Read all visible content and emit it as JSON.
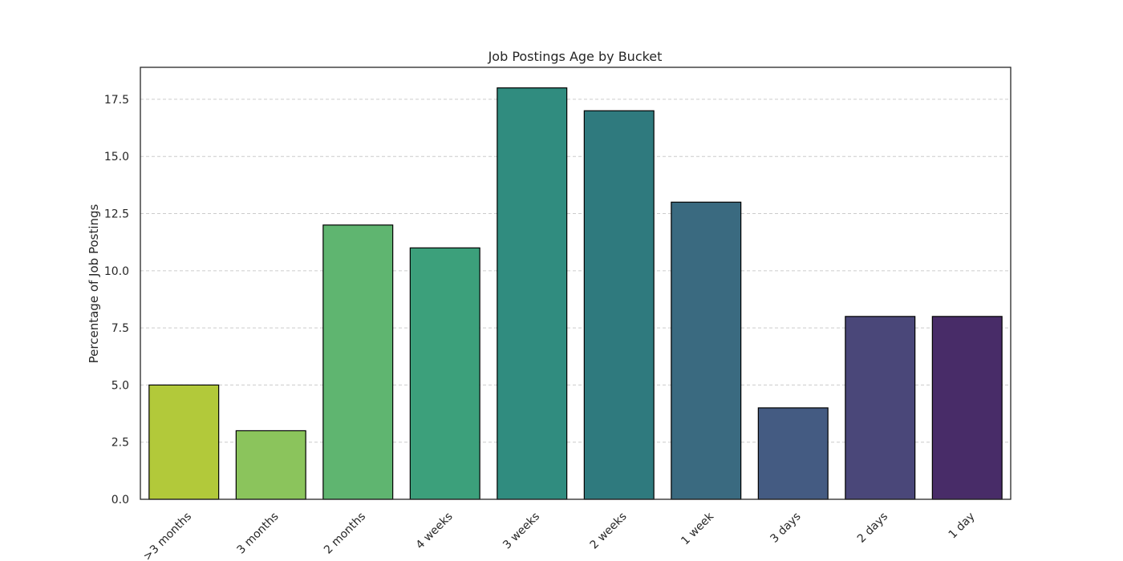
{
  "chart_data": {
    "type": "bar",
    "title": "Job Postings Age by Bucket",
    "xlabel": "",
    "ylabel": "Percentage of Job Postings",
    "categories": [
      ">3 months",
      "3 months",
      "2 months",
      "4 weeks",
      "3 weeks",
      "2 weeks",
      "1 week",
      "3 days",
      "2 days",
      "1 day"
    ],
    "values": [
      5,
      3,
      12,
      11,
      18,
      17,
      13,
      4,
      8,
      8
    ],
    "colors": [
      "#b2c93a",
      "#8bc45c",
      "#5fb570",
      "#3ca07b",
      "#308c7f",
      "#2f7a7e",
      "#3a6a80",
      "#445b82",
      "#4a4779",
      "#482c68"
    ],
    "ylim": [
      0,
      18.9
    ],
    "yticks": [
      "0.0",
      "2.5",
      "5.0",
      "7.5",
      "10.0",
      "12.5",
      "15.0",
      "17.5"
    ],
    "grid": "y dashed",
    "legend": "none"
  }
}
